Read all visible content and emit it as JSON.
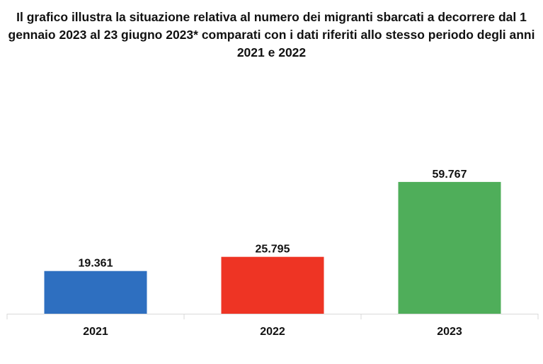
{
  "chart_data": {
    "type": "bar",
    "title": "Il grafico illustra la situazione relativa al numero dei migranti sbarcati a decorrere dal 1 gennaio 2023 al 23 giugno 2023* comparati con i dati riferiti allo stesso periodo degli anni 2021 e 2022",
    "categories": [
      "2021",
      "2022",
      "2023"
    ],
    "values": [
      19361,
      25795,
      59767
    ],
    "value_labels": [
      "19.361",
      "25.795",
      "59.767"
    ],
    "colors": [
      "#2e6fc0",
      "#ee3424",
      "#4fae5a"
    ],
    "xlabel": "",
    "ylabel": "",
    "ylim": [
      0,
      80000
    ],
    "grid": false,
    "legend": "none",
    "axis_color": "#d9d9d9"
  }
}
